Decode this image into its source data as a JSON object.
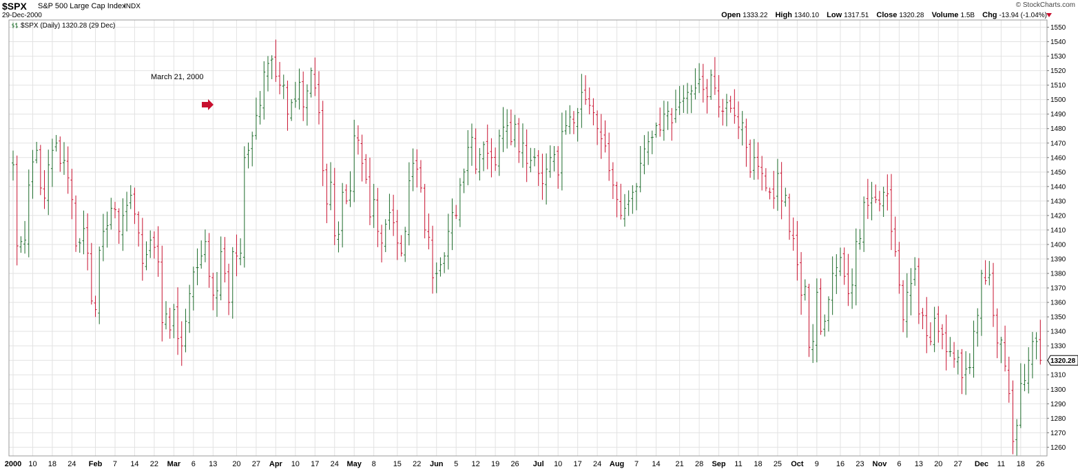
{
  "header": {
    "symbol": "$SPX",
    "description": "S&P 500 Large Cap Index",
    "exchange": "INDX",
    "date": "29-Dec-2000",
    "credit": "© StockCharts.com",
    "quote": {
      "open_label": "Open",
      "open": "1333.22",
      "high_label": "High",
      "high": "1340.10",
      "low_label": "Low",
      "low": "1317.51",
      "close_label": "Close",
      "close": "1320.28",
      "volume_label": "Volume",
      "volume": "1.5B",
      "chg_label": "Chg",
      "chg": "-13.94 (-1.04%)"
    }
  },
  "legend_text": "$SPX (Daily) 1320.28 (29 Dec)",
  "annotation": "March 21, 2000",
  "last_price_tag": "1320.28",
  "colors": {
    "up": "#1c6b2a",
    "down": "#c8102e",
    "grid": "#e2e2e2"
  },
  "chart_data": {
    "type": "ohlc",
    "ylim": [
      1254,
      1555
    ],
    "y_ticks": [
      1260,
      1270,
      1280,
      1290,
      1300,
      1310,
      1320,
      1330,
      1340,
      1350,
      1360,
      1370,
      1380,
      1390,
      1400,
      1410,
      1420,
      1430,
      1440,
      1450,
      1460,
      1470,
      1480,
      1490,
      1500,
      1510,
      1520,
      1530,
      1540,
      1550
    ],
    "x_ticks": [
      {
        "label": "2000",
        "bold": true
      },
      {
        "label": "10"
      },
      {
        "label": "18"
      },
      {
        "label": "24"
      },
      {
        "label": "Feb",
        "bold": true
      },
      {
        "label": "7"
      },
      {
        "label": "14"
      },
      {
        "label": "22"
      },
      {
        "label": "Mar",
        "bold": true
      },
      {
        "label": "6"
      },
      {
        "label": "13"
      },
      {
        "label": "20"
      },
      {
        "label": "27"
      },
      {
        "label": "Apr",
        "bold": true
      },
      {
        "label": "10"
      },
      {
        "label": "17"
      },
      {
        "label": "24"
      },
      {
        "label": "May",
        "bold": true
      },
      {
        "label": "8"
      },
      {
        "label": "15"
      },
      {
        "label": "22"
      },
      {
        "label": "Jun",
        "bold": true
      },
      {
        "label": "5"
      },
      {
        "label": "12"
      },
      {
        "label": "19"
      },
      {
        "label": "26"
      },
      {
        "label": "Jul",
        "bold": true
      },
      {
        "label": "10"
      },
      {
        "label": "17"
      },
      {
        "label": "24"
      },
      {
        "label": "Aug",
        "bold": true
      },
      {
        "label": "7"
      },
      {
        "label": "14"
      },
      {
        "label": "21"
      },
      {
        "label": "28"
      },
      {
        "label": "Sep",
        "bold": true
      },
      {
        "label": "11"
      },
      {
        "label": "18"
      },
      {
        "label": "25"
      },
      {
        "label": "Oct",
        "bold": true
      },
      {
        "label": "9"
      },
      {
        "label": "16"
      },
      {
        "label": "23"
      },
      {
        "label": "Nov",
        "bold": true
      },
      {
        "label": "6"
      },
      {
        "label": "13"
      },
      {
        "label": "20"
      },
      {
        "label": "27"
      },
      {
        "label": "Dec",
        "bold": true
      },
      {
        "label": "11"
      },
      {
        "label": "18"
      },
      {
        "label": "26"
      }
    ],
    "closes": [
      1455,
      1399,
      1402,
      1403,
      1441,
      1457,
      1465,
      1439,
      1432,
      1455,
      1465,
      1470,
      1456,
      1458,
      1446,
      1431,
      1399,
      1401,
      1411,
      1394,
      1361,
      1355,
      1396,
      1409,
      1413,
      1425,
      1424,
      1409,
      1420,
      1427,
      1434,
      1421,
      1408,
      1387,
      1393,
      1403,
      1398,
      1388,
      1346,
      1352,
      1341,
      1355,
      1335,
      1330,
      1347,
      1366,
      1381,
      1384,
      1392,
      1402,
      1378,
      1365,
      1368,
      1395,
      1380,
      1360,
      1395,
      1392,
      1394,
      1460,
      1465,
      1475,
      1489,
      1496,
      1519,
      1525,
      1528,
      1516,
      1510,
      1510,
      1490,
      1498,
      1499,
      1512,
      1495,
      1506,
      1520,
      1508,
      1491,
      1451,
      1428,
      1443,
      1406,
      1407,
      1436,
      1430,
      1437,
      1475,
      1472,
      1456,
      1445,
      1419,
      1431,
      1409,
      1401,
      1414,
      1422,
      1415,
      1401,
      1394,
      1409,
      1444,
      1456,
      1452,
      1439,
      1410,
      1405,
      1377,
      1380,
      1386,
      1392,
      1409,
      1422,
      1420,
      1441,
      1450,
      1467,
      1474,
      1452,
      1462,
      1469,
      1463,
      1460,
      1455,
      1475,
      1481,
      1482,
      1471,
      1483,
      1464,
      1470,
      1456,
      1458,
      1460,
      1449,
      1442,
      1452,
      1460,
      1462,
      1448,
      1478,
      1482,
      1488,
      1484,
      1491,
      1505,
      1500,
      1496,
      1491,
      1480,
      1473,
      1468,
      1451,
      1441,
      1431,
      1420,
      1425,
      1430,
      1436,
      1440,
      1456,
      1466,
      1471,
      1474,
      1482,
      1479,
      1490,
      1492,
      1484,
      1493,
      1498,
      1501,
      1505,
      1506,
      1508,
      1514,
      1507,
      1502,
      1517,
      1508,
      1495,
      1492,
      1498,
      1494,
      1489,
      1481,
      1484,
      1467,
      1450,
      1460,
      1454,
      1449,
      1439,
      1436,
      1432,
      1449,
      1430,
      1434,
      1409,
      1404,
      1386,
      1365,
      1371,
      1329,
      1333,
      1367,
      1340,
      1347,
      1362,
      1380,
      1384,
      1391,
      1378,
      1366,
      1372,
      1402,
      1404,
      1429,
      1427,
      1432,
      1431,
      1428,
      1436,
      1435,
      1409,
      1395,
      1372,
      1348,
      1367,
      1373,
      1383,
      1352,
      1351,
      1337,
      1333,
      1349,
      1340,
      1338,
      1326,
      1326,
      1321,
      1322,
      1308,
      1314,
      1315,
      1340,
      1351,
      1380,
      1375,
      1379,
      1351,
      1332,
      1334,
      1316,
      1297,
      1264,
      1275,
      1304,
      1306,
      1320,
      1333,
      1333,
      1320
    ]
  }
}
